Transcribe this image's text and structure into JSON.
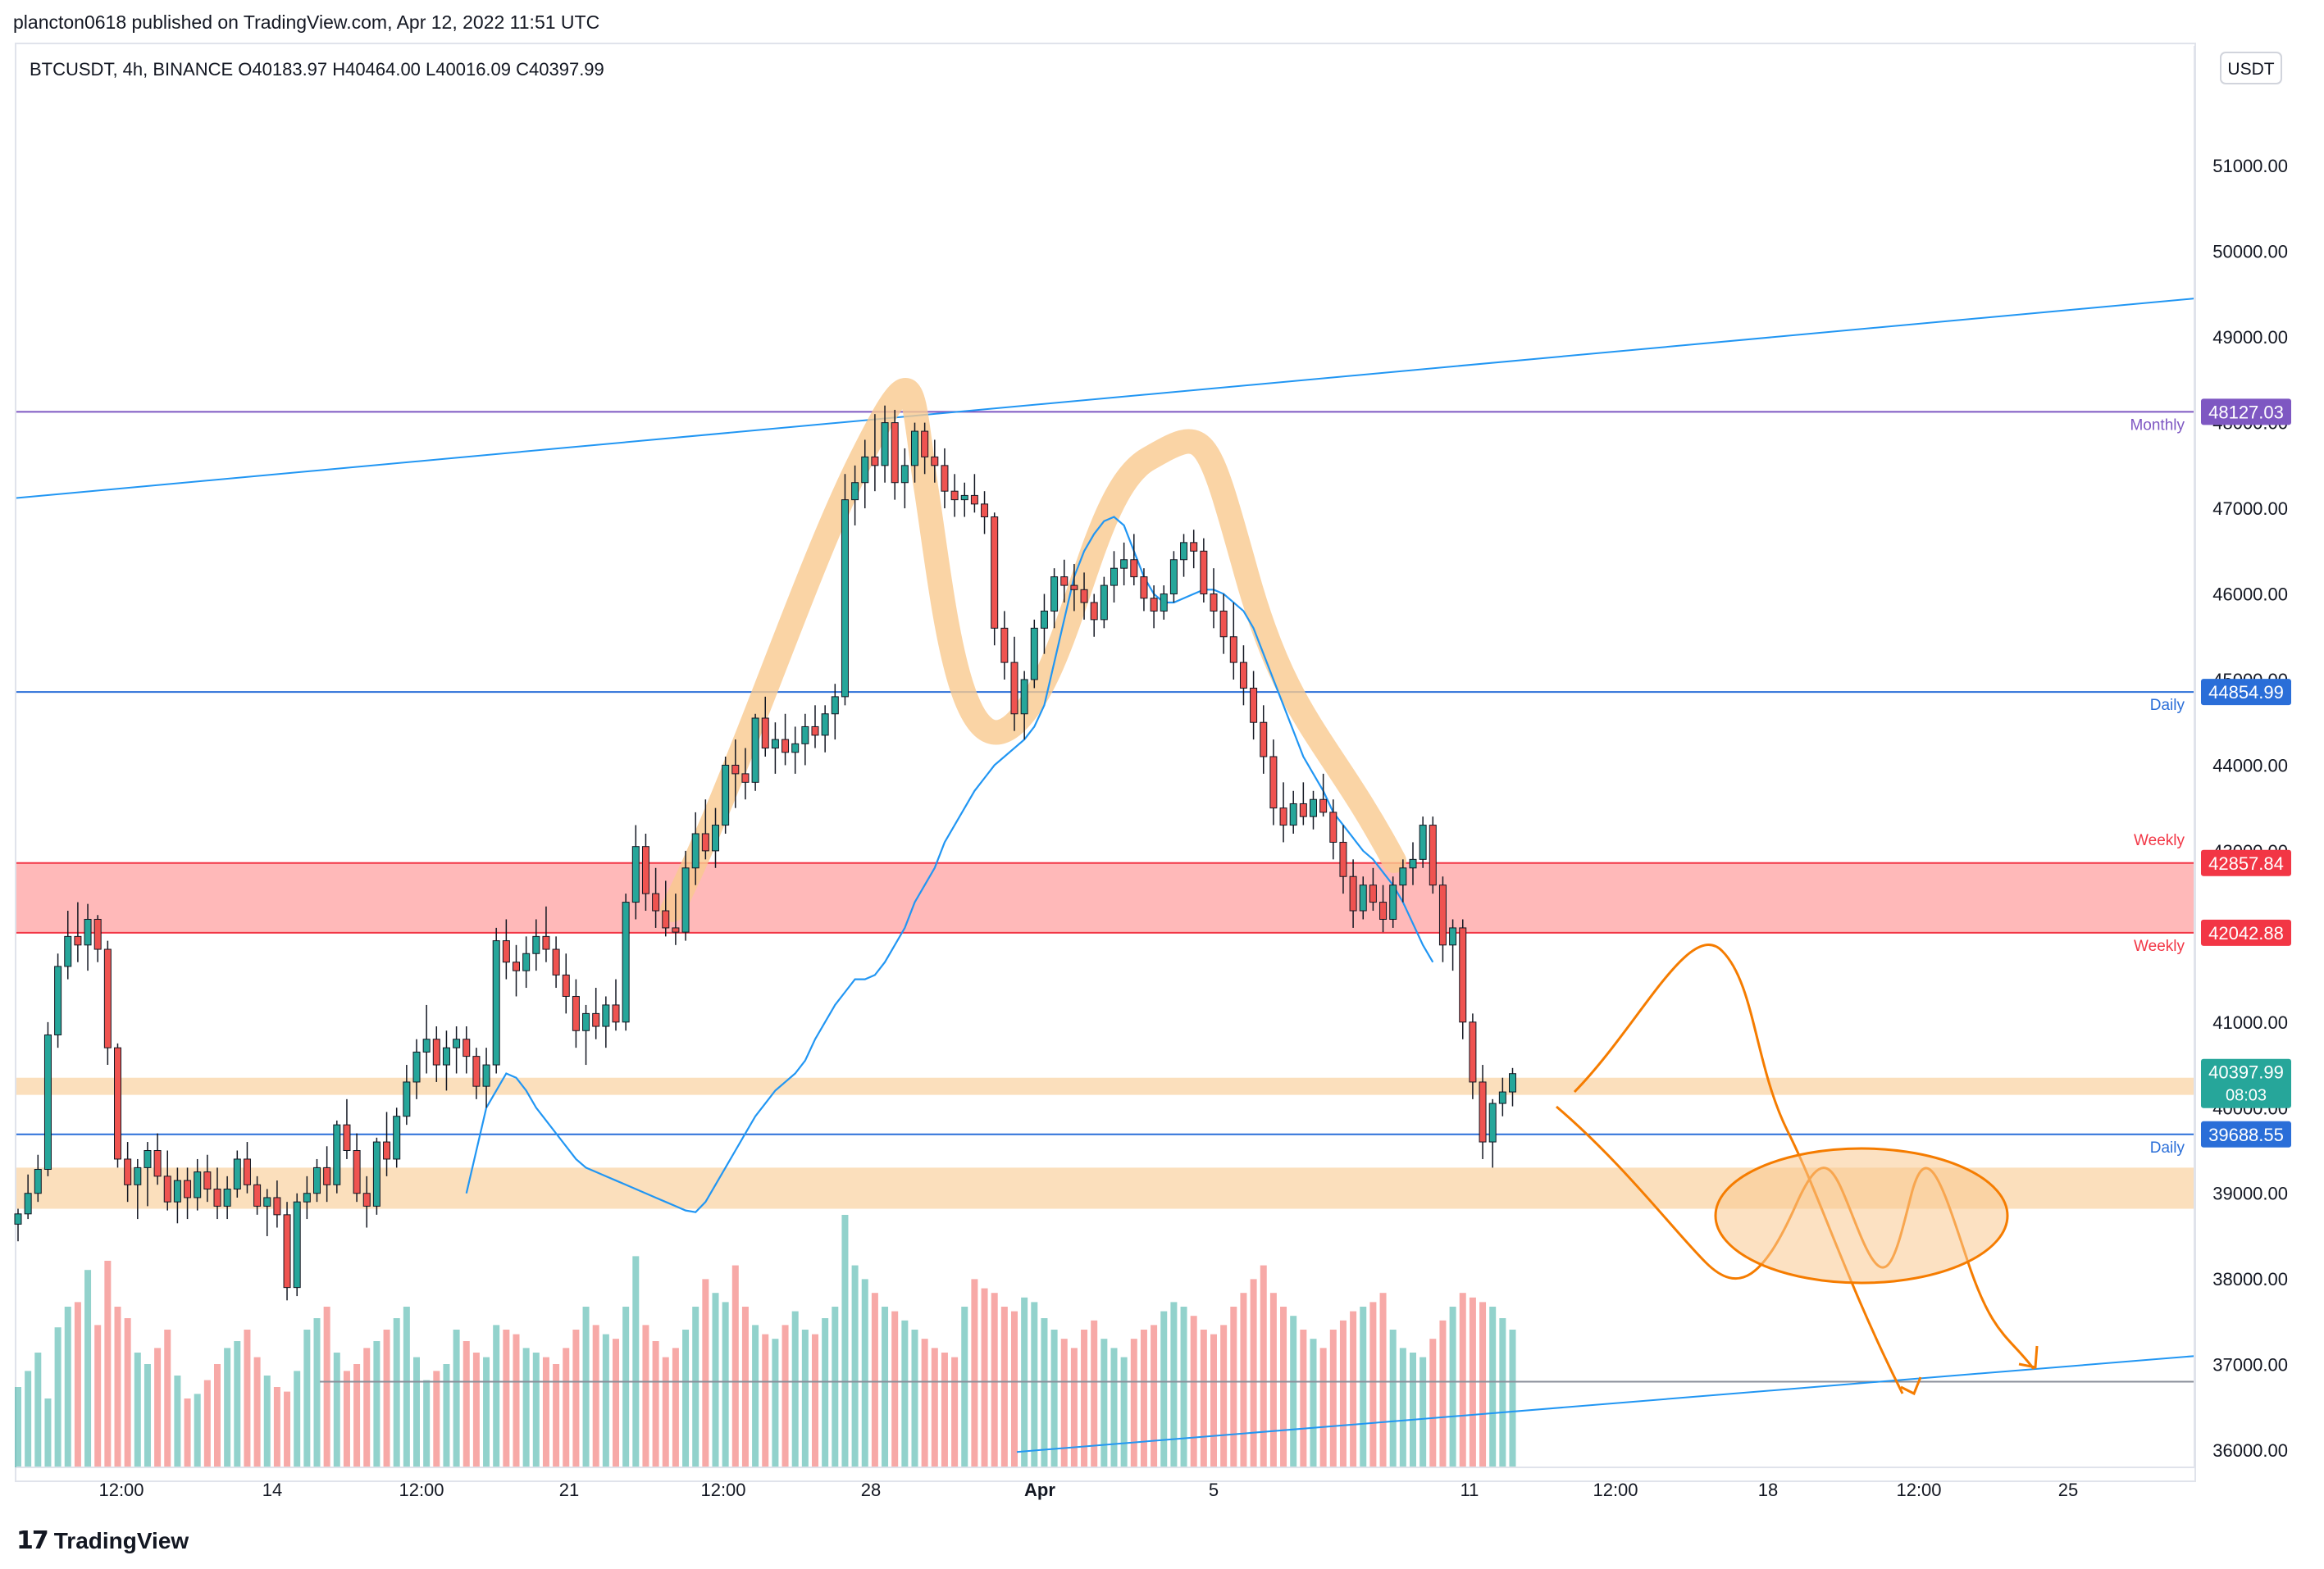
{
  "header": {
    "published": "plancton0618 published on TradingView.com, Apr 12, 2022 11:51 UTC"
  },
  "symbol_info": {
    "symbol": "BTCUSDT, 4h, BINANCE",
    "open_label": "O",
    "open": "40183.97",
    "high_label": "H",
    "high": "40464.00",
    "low_label": "L",
    "low": "40016.09",
    "close_label": "C",
    "close": "40397.99"
  },
  "currency_badge": "USDT",
  "footer": {
    "brand": "TradingView",
    "logo_icon": "tradingview-logo-icon"
  },
  "colors": {
    "up": "#26a69a",
    "down": "#ef5350",
    "ma": "#2196f3",
    "monthly": "#7e57c2",
    "daily": "#2a6ed8",
    "weekly": "#f23645",
    "zone_red": "#ff8a8a",
    "zone_orange": "#f9c98f",
    "annotation": "#f57c00",
    "last_price": "#26a69a"
  },
  "chart_data": {
    "type": "candlestick",
    "timeframe": "4h",
    "y_axis": {
      "ylim": [
        35800,
        52400
      ],
      "ticks": [
        36000,
        37000,
        38000,
        39000,
        40000,
        41000,
        42000,
        43000,
        44000,
        45000,
        46000,
        47000,
        48000,
        49000,
        50000,
        51000
      ],
      "tick_labels": [
        "36000.00",
        "37000.00",
        "38000.00",
        "39000.00",
        "40000.00",
        "41000.00",
        "42000.00",
        "43000.00",
        "44000.00",
        "45000.00",
        "46000.00",
        "47000.00",
        "48000.00",
        "49000.00",
        "50000.00",
        "51000.00"
      ]
    },
    "x_axis": {
      "tick_labels": [
        "12:00",
        "14",
        "12:00",
        "21",
        "12:00",
        "28",
        "Apr",
        "5",
        "11",
        "12:00",
        "18",
        "12:00",
        "25"
      ],
      "bold_label": "Apr"
    },
    "horizontal_levels": [
      {
        "name": "Monthly",
        "price": 48127.03,
        "label": "48127.03",
        "color": "#7e57c2"
      },
      {
        "name": "Daily",
        "price": 44854.99,
        "label": "44854.99",
        "color": "#2a6ed8"
      },
      {
        "name": "Weekly",
        "price": 42857.84,
        "label": "42857.84",
        "color": "#f23645"
      },
      {
        "name": "Weekly",
        "price": 42042.88,
        "label": "42042.88",
        "color": "#f23645"
      },
      {
        "name": "Daily",
        "price": 39688.55,
        "label": "39688.55",
        "color": "#2a6ed8"
      }
    ],
    "last_price": {
      "price": 40397.99,
      "label": "40397.99",
      "countdown": "08:03"
    },
    "zones": [
      {
        "from": 42042.88,
        "to": 42857.84,
        "color": "red"
      },
      {
        "from": 40150,
        "to": 40350,
        "color": "orange"
      },
      {
        "from": 38820,
        "to": 39300,
        "color": "orange"
      }
    ],
    "candles": [
      [
        38640,
        38820,
        38440,
        38760
      ],
      [
        38760,
        39220,
        38700,
        39000
      ],
      [
        39000,
        39450,
        38900,
        39280
      ],
      [
        39280,
        41000,
        39200,
        40850
      ],
      [
        40850,
        41800,
        40700,
        41650
      ],
      [
        41650,
        42300,
        41500,
        42000
      ],
      [
        42000,
        42400,
        41700,
        41900
      ],
      [
        41900,
        42380,
        41600,
        42200
      ],
      [
        42200,
        42250,
        41700,
        41850
      ],
      [
        41850,
        41950,
        40500,
        40700
      ],
      [
        40700,
        40750,
        39300,
        39400
      ],
      [
        39400,
        39600,
        38900,
        39100
      ],
      [
        39100,
        39400,
        38700,
        39300
      ],
      [
        39300,
        39600,
        38850,
        39500
      ],
      [
        39500,
        39700,
        39100,
        39200
      ],
      [
        39200,
        39500,
        38800,
        38900
      ],
      [
        38900,
        39300,
        38650,
        39150
      ],
      [
        39150,
        39300,
        38700,
        38950
      ],
      [
        38950,
        39400,
        38800,
        39250
      ],
      [
        39250,
        39450,
        38900,
        39050
      ],
      [
        39050,
        39300,
        38700,
        38850
      ],
      [
        38850,
        39200,
        38700,
        39050
      ],
      [
        39050,
        39500,
        38950,
        39400
      ],
      [
        39400,
        39600,
        39000,
        39100
      ],
      [
        39100,
        39200,
        38750,
        38850
      ],
      [
        38850,
        39050,
        38500,
        38950
      ],
      [
        38950,
        39150,
        38600,
        38750
      ],
      [
        38750,
        38900,
        37750,
        37900
      ],
      [
        37900,
        39000,
        37800,
        38900
      ],
      [
        38900,
        39200,
        38700,
        39000
      ],
      [
        39000,
        39400,
        38900,
        39300
      ],
      [
        39300,
        39550,
        38900,
        39100
      ],
      [
        39100,
        39850,
        39000,
        39800
      ],
      [
        39800,
        40100,
        39400,
        39500
      ],
      [
        39500,
        39700,
        38900,
        39000
      ],
      [
        39000,
        39200,
        38600,
        38850
      ],
      [
        38850,
        39650,
        38750,
        39600
      ],
      [
        39600,
        39950,
        39200,
        39400
      ],
      [
        39400,
        40000,
        39300,
        39900
      ],
      [
        39900,
        40500,
        39800,
        40300
      ],
      [
        40300,
        40800,
        40100,
        40650
      ],
      [
        40650,
        41200,
        40400,
        40800
      ],
      [
        40800,
        40950,
        40300,
        40500
      ],
      [
        40500,
        40900,
        40200,
        40700
      ],
      [
        40700,
        40950,
        40400,
        40800
      ],
      [
        40800,
        40950,
        40400,
        40600
      ],
      [
        40600,
        40700,
        40100,
        40250
      ],
      [
        40250,
        40700,
        40000,
        40500
      ],
      [
        40500,
        42100,
        40400,
        41950
      ],
      [
        41950,
        42200,
        41500,
        41700
      ],
      [
        41700,
        41900,
        41300,
        41600
      ],
      [
        41600,
        42000,
        41400,
        41800
      ],
      [
        41800,
        42200,
        41600,
        42000
      ],
      [
        42000,
        42350,
        41700,
        41850
      ],
      [
        41850,
        42000,
        41400,
        41550
      ],
      [
        41550,
        41800,
        41100,
        41300
      ],
      [
        41300,
        41500,
        40700,
        40900
      ],
      [
        40900,
        41200,
        40500,
        41100
      ],
      [
        41100,
        41400,
        40800,
        40950
      ],
      [
        40950,
        41300,
        40700,
        41200
      ],
      [
        41200,
        41500,
        40900,
        41000
      ],
      [
        41000,
        42500,
        40900,
        42400
      ],
      [
        42400,
        43300,
        42200,
        43050
      ],
      [
        43050,
        43200,
        42300,
        42500
      ],
      [
        42500,
        42800,
        42100,
        42300
      ],
      [
        42300,
        42650,
        42000,
        42100
      ],
      [
        42100,
        42500,
        41900,
        42050
      ],
      [
        42050,
        43000,
        41950,
        42800
      ],
      [
        42800,
        43450,
        42600,
        43200
      ],
      [
        43200,
        43600,
        42900,
        43000
      ],
      [
        43000,
        43500,
        42800,
        43300
      ],
      [
        43300,
        44100,
        43200,
        44000
      ],
      [
        44000,
        44300,
        43500,
        43900
      ],
      [
        43900,
        44200,
        43600,
        43800
      ],
      [
        43800,
        44600,
        43700,
        44550
      ],
      [
        44550,
        44800,
        44100,
        44200
      ],
      [
        44200,
        44500,
        43900,
        44300
      ],
      [
        44300,
        44600,
        44000,
        44150
      ],
      [
        44150,
        44450,
        43900,
        44250
      ],
      [
        44250,
        44600,
        44000,
        44450
      ],
      [
        44450,
        44700,
        44200,
        44350
      ],
      [
        44350,
        44700,
        44150,
        44600
      ],
      [
        44600,
        44950,
        44300,
        44800
      ],
      [
        44800,
        47400,
        44700,
        47100
      ],
      [
        47100,
        47500,
        46800,
        47300
      ],
      [
        47300,
        47800,
        47000,
        47600
      ],
      [
        47600,
        48100,
        47200,
        47500
      ],
      [
        47500,
        48200,
        47300,
        48000
      ],
      [
        48000,
        48150,
        47100,
        47300
      ],
      [
        47300,
        47700,
        47000,
        47500
      ],
      [
        47500,
        48000,
        47300,
        47900
      ],
      [
        47900,
        48000,
        47400,
        47600
      ],
      [
        47600,
        47800,
        47300,
        47500
      ],
      [
        47500,
        47700,
        47000,
        47200
      ],
      [
        47200,
        47400,
        46900,
        47100
      ],
      [
        47100,
        47300,
        46900,
        47150
      ],
      [
        47150,
        47400,
        46950,
        47050
      ],
      [
        47050,
        47200,
        46700,
        46900
      ],
      [
        46900,
        46950,
        45400,
        45600
      ],
      [
        45600,
        45800,
        45000,
        45200
      ],
      [
        45200,
        45500,
        44400,
        44600
      ],
      [
        44600,
        45100,
        44300,
        45000
      ],
      [
        45000,
        45700,
        44900,
        45600
      ],
      [
        45600,
        46000,
        45300,
        45800
      ],
      [
        45800,
        46300,
        45600,
        46200
      ],
      [
        46200,
        46400,
        45900,
        46100
      ],
      [
        46100,
        46350,
        45800,
        46050
      ],
      [
        46050,
        46250,
        45700,
        45900
      ],
      [
        45900,
        46000,
        45500,
        45700
      ],
      [
        45700,
        46200,
        45600,
        46100
      ],
      [
        46100,
        46500,
        45900,
        46300
      ],
      [
        46300,
        46600,
        46100,
        46400
      ],
      [
        46400,
        46700,
        46100,
        46200
      ],
      [
        46200,
        46300,
        45800,
        45950
      ],
      [
        45950,
        46100,
        45600,
        45800
      ],
      [
        45800,
        46100,
        45700,
        46000
      ],
      [
        46000,
        46500,
        45900,
        46400
      ],
      [
        46400,
        46700,
        46200,
        46600
      ],
      [
        46600,
        46750,
        46300,
        46500
      ],
      [
        46500,
        46650,
        45900,
        46000
      ],
      [
        46000,
        46300,
        45600,
        45800
      ],
      [
        45800,
        46000,
        45300,
        45500
      ],
      [
        45500,
        45900,
        45000,
        45200
      ],
      [
        45200,
        45400,
        44700,
        44900
      ],
      [
        44900,
        45100,
        44300,
        44500
      ],
      [
        44500,
        44700,
        43900,
        44100
      ],
      [
        44100,
        44300,
        43300,
        43500
      ],
      [
        43500,
        43800,
        43100,
        43300
      ],
      [
        43300,
        43700,
        43200,
        43550
      ],
      [
        43550,
        43800,
        43300,
        43400
      ],
      [
        43400,
        43700,
        43250,
        43600
      ],
      [
        43600,
        43900,
        43400,
        43450
      ],
      [
        43450,
        43600,
        42900,
        43100
      ],
      [
        43100,
        43300,
        42500,
        42700
      ],
      [
        42700,
        42900,
        42100,
        42300
      ],
      [
        42300,
        42700,
        42200,
        42600
      ],
      [
        42600,
        42800,
        42300,
        42400
      ],
      [
        42400,
        42600,
        42050,
        42200
      ],
      [
        42200,
        42700,
        42100,
        42600
      ],
      [
        42600,
        42900,
        42400,
        42800
      ],
      [
        42800,
        43100,
        42600,
        42900
      ],
      [
        42900,
        43400,
        42800,
        43300
      ],
      [
        43300,
        43400,
        42500,
        42600
      ],
      [
        42600,
        42700,
        41700,
        41900
      ],
      [
        41900,
        42200,
        41600,
        42100
      ],
      [
        42100,
        42200,
        40800,
        41000
      ],
      [
        41000,
        41100,
        40100,
        40300
      ],
      [
        40300,
        40500,
        39400,
        39600
      ],
      [
        39600,
        40100,
        39300,
        40050
      ],
      [
        40050,
        40350,
        39900,
        40183.97
      ],
      [
        40183.97,
        40464,
        40016.09,
        40397.99
      ]
    ],
    "moving_average": {
      "name": "",
      "values": [
        39000,
        39500,
        40000,
        40200,
        40400,
        40350,
        40200,
        40000,
        39850,
        39700,
        39550,
        39400,
        39300,
        39250,
        39200,
        39150,
        39100,
        39050,
        39000,
        38950,
        38900,
        38850,
        38800,
        38780,
        38900,
        39100,
        39300,
        39500,
        39700,
        39900,
        40050,
        40200,
        40300,
        40400,
        40550,
        40800,
        41000,
        41200,
        41350,
        41500,
        41500,
        41550,
        41700,
        41900,
        42100,
        42400,
        42600,
        42800,
        43100,
        43300,
        43500,
        43700,
        43850,
        44000,
        44100,
        44200,
        44300,
        44450,
        44700,
        45200,
        45700,
        46200,
        46500,
        46700,
        46850,
        46900,
        46800,
        46500,
        46200,
        46000,
        45900,
        45900,
        45950,
        46000,
        46050,
        46050,
        46000,
        45900,
        45800,
        45600,
        45300,
        45000,
        44700,
        44400,
        44100,
        43900,
        43700,
        43450,
        43300,
        43150,
        43000,
        42900,
        42750,
        42600,
        42400,
        42150,
        41900,
        41700
      ]
    },
    "volumes": [
      350,
      420,
      500,
      300,
      610,
      700,
      720,
      860,
      620,
      900,
      700,
      650,
      500,
      450,
      520,
      600,
      400,
      300,
      320,
      380,
      450,
      520,
      550,
      600,
      480,
      400,
      350,
      330,
      420,
      600,
      650,
      700,
      500,
      420,
      450,
      520,
      550,
      600,
      650,
      700,
      480,
      380,
      420,
      450,
      600,
      550,
      500,
      480,
      620,
      600,
      580,
      520,
      500,
      480,
      450,
      520,
      600,
      700,
      620,
      580,
      560,
      700,
      920,
      620,
      550,
      480,
      520,
      600,
      700,
      820,
      760,
      720,
      880,
      700,
      620,
      580,
      560,
      620,
      680,
      600,
      580,
      650,
      700,
      1100,
      880,
      820,
      760,
      700,
      680,
      640,
      600,
      560,
      520,
      500,
      480,
      700,
      820,
      780,
      760,
      700,
      680,
      740,
      720,
      650,
      600,
      560,
      520,
      600,
      640,
      560,
      520,
      480,
      560,
      600,
      620,
      680,
      720,
      700,
      660,
      600,
      580,
      620,
      700,
      760,
      820,
      880,
      760,
      700,
      660,
      600,
      560,
      520,
      600,
      640,
      680,
      700,
      720,
      760,
      600,
      520,
      500,
      480,
      560,
      640,
      700,
      760,
      740,
      720,
      700,
      650,
      600,
      560
    ]
  }
}
